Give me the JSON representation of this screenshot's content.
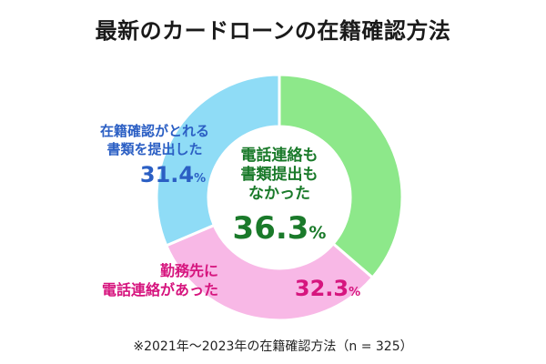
{
  "title": "最新のカードローンの在籍確認方法",
  "note": "※2021年〜2023年の在籍確認方法（n = 325）",
  "chart_data": {
    "type": "pie",
    "title": "最新のカードローンの在籍確認方法",
    "slices": [
      {
        "label_lines": [
          "電話連絡も",
          "書類提出も",
          "なかった"
        ],
        "value": 36.3,
        "value_text": "36.3",
        "unit": "%",
        "color": "#8de88a",
        "label_color": "#1a7a2a"
      },
      {
        "label_lines": [
          "勤務先に",
          "電話連絡があった"
        ],
        "value": 32.3,
        "value_text": "32.3",
        "unit": "%",
        "color": "#f8b8e6",
        "label_color": "#d6157e"
      },
      {
        "label_lines": [
          "在籍確認がとれる",
          "書類を提出した"
        ],
        "value": 31.4,
        "value_text": "31.4",
        "unit": "%",
        "color": "#8fdcf6",
        "label_color": "#2b5fc4"
      }
    ]
  }
}
